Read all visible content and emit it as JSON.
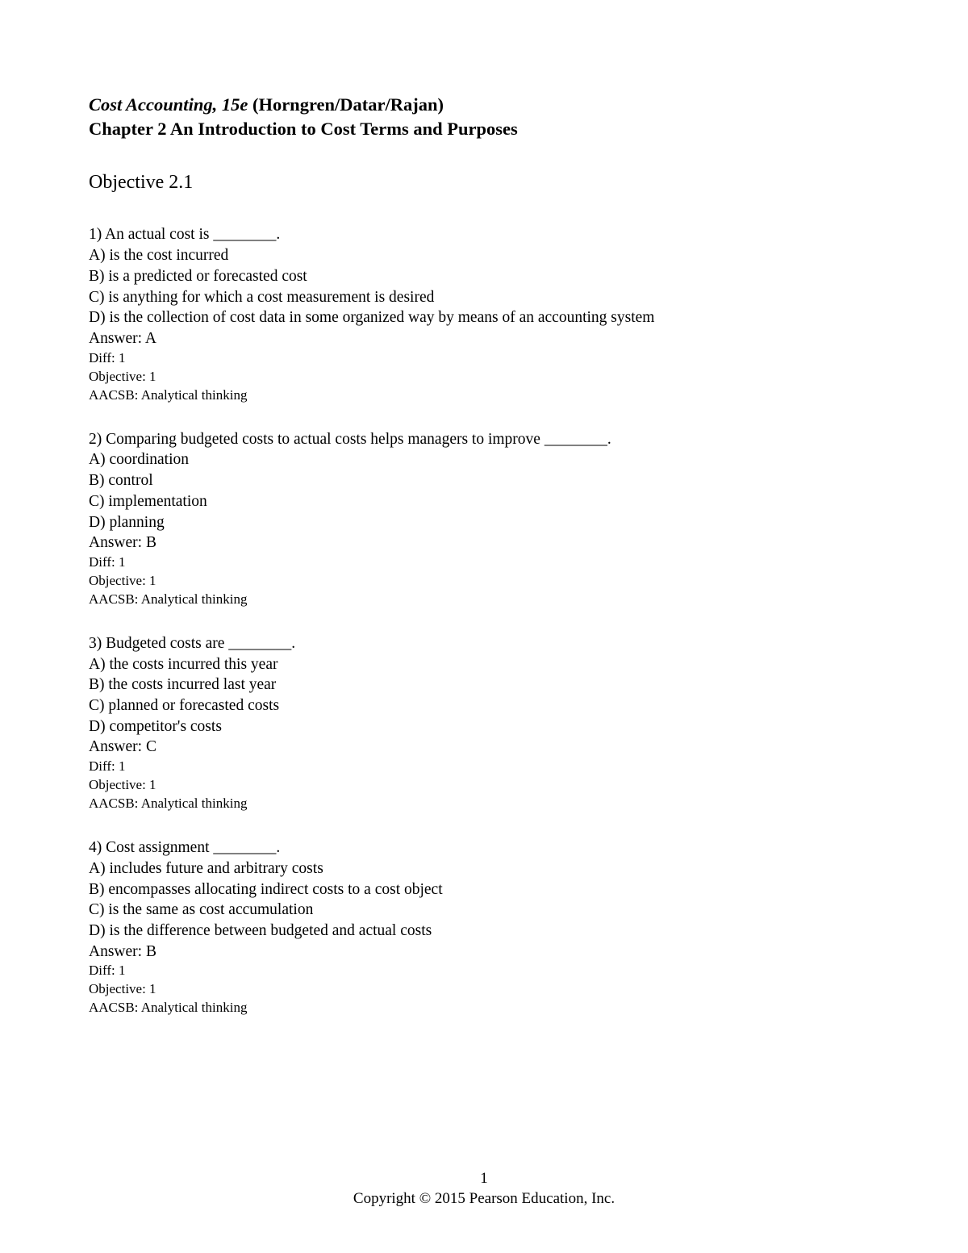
{
  "header": {
    "book_title": "Cost Accounting, 15e",
    "authors": " (Horngren/Datar/Rajan)",
    "chapter": "Chapter 2   An Introduction to Cost Terms and Purposes",
    "objective": "Objective 2.1"
  },
  "questions": [
    {
      "stem": "1)  An actual cost is ________.",
      "options": [
        "A) is the cost incurred",
        "B) is a predicted or forecasted cost",
        "C) is anything for which a cost measurement is desired",
        "D) is the collection of cost data in some organized way by means of an accounting system"
      ],
      "answer": "Answer:  A",
      "meta": [
        "Diff: 1",
        "Objective:  1",
        "AACSB:  Analytical thinking"
      ]
    },
    {
      "stem": "2) Comparing budgeted costs to actual costs helps managers to improve ________.",
      "options": [
        "A) coordination",
        "B) control",
        "C) implementation",
        "D) planning"
      ],
      "answer": "Answer:  B",
      "meta": [
        "Diff: 1",
        "Objective:  1",
        "AACSB:  Analytical thinking"
      ]
    },
    {
      "stem": "3) Budgeted costs are ________.",
      "options": [
        "A) the costs incurred this year",
        "B) the costs incurred last year",
        "C) planned or forecasted costs",
        "D) competitor's costs"
      ],
      "answer": "Answer:  C",
      "meta": [
        "Diff: 1",
        "Objective:  1",
        "AACSB:  Analytical thinking"
      ]
    },
    {
      "stem": "4) Cost assignment ________.",
      "options": [
        "A) includes future and arbitrary costs",
        "B) encompasses allocating indirect costs to a cost object",
        "C) is the same as cost accumulation",
        "D) is the difference between budgeted and actual costs"
      ],
      "answer": "Answer:  B",
      "meta": [
        "Diff: 1",
        "Objective:  1",
        "AACSB:  Analytical thinking"
      ]
    }
  ],
  "footer": {
    "page_number": "1",
    "copyright": "Copyright © 2015 Pearson Education, Inc."
  }
}
